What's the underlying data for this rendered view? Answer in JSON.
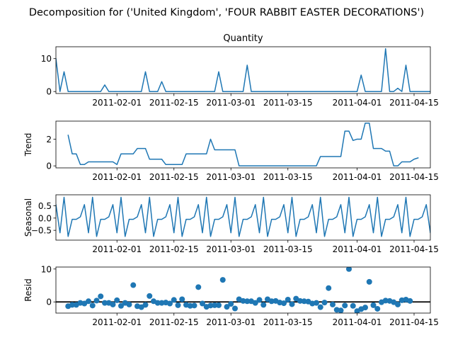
{
  "figure": {
    "suptitle": "Decomposition for ('United Kingdom', 'FOUR RABBIT EASTER DECORATIONS')"
  },
  "colors": {
    "series": "#1f77b4",
    "zero_line": "#000000"
  },
  "chart_data": [
    {
      "type": "line",
      "title": "Quantity",
      "ylabel": "",
      "x_start": "2011-01-17",
      "x_step_days": 1,
      "xlim": [
        "2011-01-17",
        "2011-04-19"
      ],
      "ylim": [
        -0.6,
        13.6
      ],
      "yticks": [
        0,
        10
      ],
      "xtick_labels": [
        "2011-02-01",
        "2011-02-15",
        "2011-03-01",
        "2011-03-15",
        "2011-04-01",
        "2011-04-15"
      ],
      "values": [
        10,
        0,
        6,
        0,
        0,
        0,
        0,
        0,
        0,
        0,
        0,
        0,
        2,
        0,
        0,
        0,
        0,
        0,
        0,
        0,
        0,
        0,
        6,
        0,
        0,
        0,
        3,
        0,
        0,
        0,
        0,
        0,
        0,
        0,
        0,
        0,
        0,
        0,
        0,
        0,
        6,
        0,
        0,
        0,
        0,
        0,
        0,
        8,
        0,
        0,
        0,
        0,
        0,
        0,
        0,
        0,
        0,
        0,
        0,
        0,
        0,
        0,
        0,
        0,
        0,
        0,
        0,
        0,
        0,
        0,
        0,
        0,
        0,
        0,
        0,
        5,
        0,
        0,
        0,
        0,
        0,
        13,
        0,
        0,
        1,
        0,
        8,
        0,
        0,
        0,
        0,
        0,
        0,
        0,
        0,
        0,
        2,
        0,
        0,
        1,
        1
      ]
    },
    {
      "type": "line",
      "title": "",
      "ylabel": "Trend",
      "x_start": "2011-01-20",
      "x_step_days": 1,
      "xlim": [
        "2011-01-17",
        "2011-04-19"
      ],
      "ylim": [
        -0.15,
        3.35
      ],
      "yticks": [
        0,
        2
      ],
      "xtick_labels": [
        "2011-02-01",
        "2011-02-15",
        "2011-03-01",
        "2011-03-15",
        "2011-04-01",
        "2011-04-15"
      ],
      "values": [
        2.3,
        0.9,
        0.9,
        0.1,
        0.1,
        0.3,
        0.3,
        0.3,
        0.3,
        0.3,
        0.3,
        0.3,
        0.1,
        0.9,
        0.9,
        0.9,
        0.9,
        1.3,
        1.3,
        1.3,
        0.5,
        0.5,
        0.5,
        0.5,
        0.1,
        0.1,
        0.1,
        0.1,
        0.1,
        0.9,
        0.9,
        0.9,
        0.9,
        0.9,
        0.9,
        2.0,
        1.2,
        1.2,
        1.2,
        1.2,
        1.2,
        1.2,
        0.0,
        0.0,
        0.0,
        0.0,
        0.0,
        0.0,
        0.0,
        0.0,
        0.0,
        0.0,
        0.0,
        0.0,
        0.0,
        0.0,
        0.0,
        0.0,
        0.0,
        0.0,
        0.0,
        0.0,
        0.7,
        0.7,
        0.7,
        0.7,
        0.7,
        0.7,
        2.6,
        2.6,
        1.9,
        2.0,
        2.0,
        3.2,
        3.2,
        1.3,
        1.3,
        1.3,
        1.1,
        1.1,
        0.0,
        0.0,
        0.3,
        0.3,
        0.3,
        0.5,
        0.6
      ]
    },
    {
      "type": "line",
      "title": "",
      "ylabel": "Seasonal",
      "x_start": "2011-01-17",
      "x_step_days": 1,
      "xlim": [
        "2011-01-17",
        "2011-04-19"
      ],
      "ylim": [
        -0.9,
        0.95
      ],
      "yticks": [
        0.5,
        0.0,
        -0.5
      ],
      "ytick_labels": [
        "0.5",
        "0.0",
        "−0.5"
      ],
      "xtick_labels": [
        "2011-02-01",
        "2011-02-15",
        "2011-03-01",
        "2011-03-15",
        "2011-04-01",
        "2011-04-15"
      ],
      "values": [
        0.55,
        -0.6,
        0.85,
        -0.75,
        -0.05,
        -0.05,
        0.05,
        0.55,
        -0.6,
        0.85,
        -0.75,
        -0.05,
        -0.05,
        0.05,
        0.55,
        -0.6,
        0.85,
        -0.75,
        -0.05,
        -0.05,
        0.05,
        0.55,
        -0.6,
        0.85,
        -0.75,
        -0.05,
        -0.05,
        0.05,
        0.55,
        -0.6,
        0.85,
        -0.75,
        -0.05,
        -0.05,
        0.05,
        0.55,
        -0.6,
        0.85,
        -0.75,
        -0.05,
        -0.05,
        0.05,
        0.55,
        -0.6,
        0.85,
        -0.75,
        -0.05,
        -0.05,
        0.05,
        0.55,
        -0.6,
        0.85,
        -0.75,
        -0.05,
        -0.05,
        0.05,
        0.55,
        -0.6,
        0.85,
        -0.75,
        -0.05,
        -0.05,
        0.05,
        0.55,
        -0.6,
        0.85,
        -0.75,
        -0.05,
        -0.05,
        0.05,
        0.55,
        -0.6,
        0.85,
        -0.75,
        -0.05,
        -0.05,
        0.05,
        0.55,
        -0.6,
        0.85,
        -0.75,
        -0.05,
        -0.05,
        0.05,
        0.55,
        -0.6,
        0.85,
        -0.75,
        -0.05,
        -0.05,
        0.05,
        0.55,
        -0.6,
        0.85,
        -0.75,
        -0.05,
        -0.05,
        0.05,
        0.55,
        -0.6
      ]
    },
    {
      "type": "scatter",
      "title": "",
      "ylabel": "Resid",
      "x_start": "2011-01-20",
      "x_step_days": 1,
      "xlim": [
        "2011-01-17",
        "2011-04-19"
      ],
      "ylim": [
        -3.4,
        10.6
      ],
      "yticks": [
        10,
        0
      ],
      "zero_line": true,
      "xtick_labels": [
        "2011-02-01",
        "2011-02-15",
        "2011-03-01",
        "2011-03-15",
        "2011-04-01",
        "2011-04-15"
      ],
      "values": [
        -1.3,
        -0.9,
        -0.9,
        -0.3,
        -0.5,
        0.2,
        -1.1,
        0.4,
        1.7,
        -0.3,
        -0.3,
        -0.8,
        0.5,
        -1.2,
        -0.3,
        -0.8,
        5.1,
        -1.3,
        -1.6,
        -0.9,
        1.8,
        0.2,
        -0.3,
        -0.3,
        -0.2,
        -0.5,
        0.6,
        -1.0,
        0.8,
        -0.9,
        -1.2,
        -1.1,
        4.5,
        -0.5,
        -1.5,
        -1.1,
        -1.0,
        -1.0,
        6.7,
        -1.5,
        -0.6,
        -2.0,
        0.8,
        0.3,
        0.2,
        0.2,
        -0.3,
        0.6,
        -0.9,
        0.8,
        0.2,
        0.3,
        -0.2,
        -0.4,
        0.7,
        -0.7,
        1.0,
        0.3,
        0.2,
        0.1,
        -0.5,
        -0.3,
        -1.6,
        -0.2,
        4.2,
        -0.8,
        -2.4,
        -2.6,
        -1.1,
        10.0,
        -1.2,
        -2.8,
        -2.2,
        -1.7,
        6.1,
        -1.0,
        -2.1,
        -0.1,
        0.4,
        0.3,
        -0.1,
        -0.8,
        0.5,
        0.7,
        0.3
      ]
    }
  ]
}
